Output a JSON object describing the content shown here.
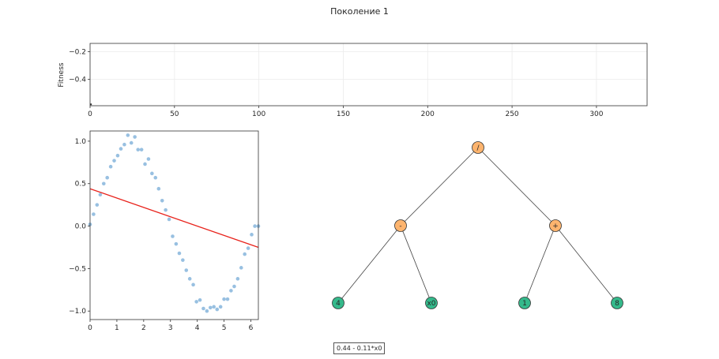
{
  "title": "Поколение 1",
  "formula": "0.44 - 0.11*x0",
  "colors": {
    "operator_node": "#fdb46e",
    "terminal_node": "#35b98b",
    "fit_line": "#e8221b",
    "scatter": "#86b5dc",
    "fitness_line": "#1f77b4"
  },
  "chart_data": [
    {
      "type": "line",
      "title": "",
      "xlabel": "",
      "ylabel": "Fitness",
      "xlim": [
        0,
        330
      ],
      "ylim": [
        -0.59,
        -0.14
      ],
      "xticks": [
        0,
        50,
        100,
        150,
        200,
        250,
        300
      ],
      "yticks": [
        -0.2,
        -0.4
      ],
      "grid": true,
      "series": [
        {
          "x": [
            0,
            1
          ],
          "y": [
            -0.58,
            -0.58
          ]
        }
      ]
    },
    {
      "type": "scatter",
      "title": "",
      "xlabel": "",
      "ylabel": "",
      "xlim": [
        0,
        6.28
      ],
      "ylim": [
        -1.1,
        1.12
      ],
      "xticks": [
        0,
        1,
        2,
        3,
        4,
        5,
        6
      ],
      "yticks": [
        1.0,
        0.5,
        0.0,
        -0.5,
        -1.0
      ],
      "grid": false,
      "points": {
        "x": [
          0.0,
          0.13,
          0.26,
          0.38,
          0.51,
          0.64,
          0.77,
          0.9,
          1.03,
          1.15,
          1.28,
          1.41,
          1.54,
          1.67,
          1.79,
          1.92,
          2.05,
          2.18,
          2.31,
          2.44,
          2.56,
          2.69,
          2.82,
          2.95,
          3.08,
          3.21,
          3.33,
          3.46,
          3.59,
          3.72,
          3.85,
          3.97,
          4.1,
          4.23,
          4.36,
          4.49,
          4.62,
          4.74,
          4.87,
          5.0,
          5.13,
          5.26,
          5.38,
          5.51,
          5.64,
          5.77,
          5.9,
          6.03,
          6.15,
          6.28
        ],
        "y": [
          0.02,
          0.14,
          0.25,
          0.37,
          0.5,
          0.57,
          0.7,
          0.77,
          0.83,
          0.91,
          0.96,
          1.07,
          0.98,
          1.05,
          0.9,
          0.9,
          0.73,
          0.79,
          0.62,
          0.57,
          0.44,
          0.3,
          0.19,
          0.08,
          -0.12,
          -0.21,
          -0.32,
          -0.4,
          -0.52,
          -0.62,
          -0.69,
          -0.89,
          -0.87,
          -0.97,
          -1.0,
          -0.96,
          -0.95,
          -0.98,
          -0.95,
          -0.86,
          -0.86,
          -0.76,
          -0.71,
          -0.62,
          -0.49,
          -0.33,
          -0.26,
          -0.1,
          0.0,
          0.0
        ]
      },
      "fit_line": {
        "x": [
          0,
          6.28
        ],
        "y": [
          0.44,
          -0.25
        ]
      }
    }
  ],
  "tree": {
    "nodes": [
      {
        "id": "n1",
        "label": "/",
        "kind": "operator"
      },
      {
        "id": "n2",
        "label": "-",
        "kind": "operator"
      },
      {
        "id": "n3",
        "label": "+",
        "kind": "operator"
      },
      {
        "id": "n4",
        "label": "4",
        "kind": "terminal"
      },
      {
        "id": "n5",
        "label": "x0",
        "kind": "terminal"
      },
      {
        "id": "n6",
        "label": "1",
        "kind": "terminal"
      },
      {
        "id": "n7",
        "label": "8",
        "kind": "terminal"
      }
    ],
    "edges": [
      [
        "n1",
        "n2"
      ],
      [
        "n1",
        "n3"
      ],
      [
        "n2",
        "n4"
      ],
      [
        "n2",
        "n5"
      ],
      [
        "n3",
        "n6"
      ],
      [
        "n3",
        "n7"
      ]
    ]
  }
}
